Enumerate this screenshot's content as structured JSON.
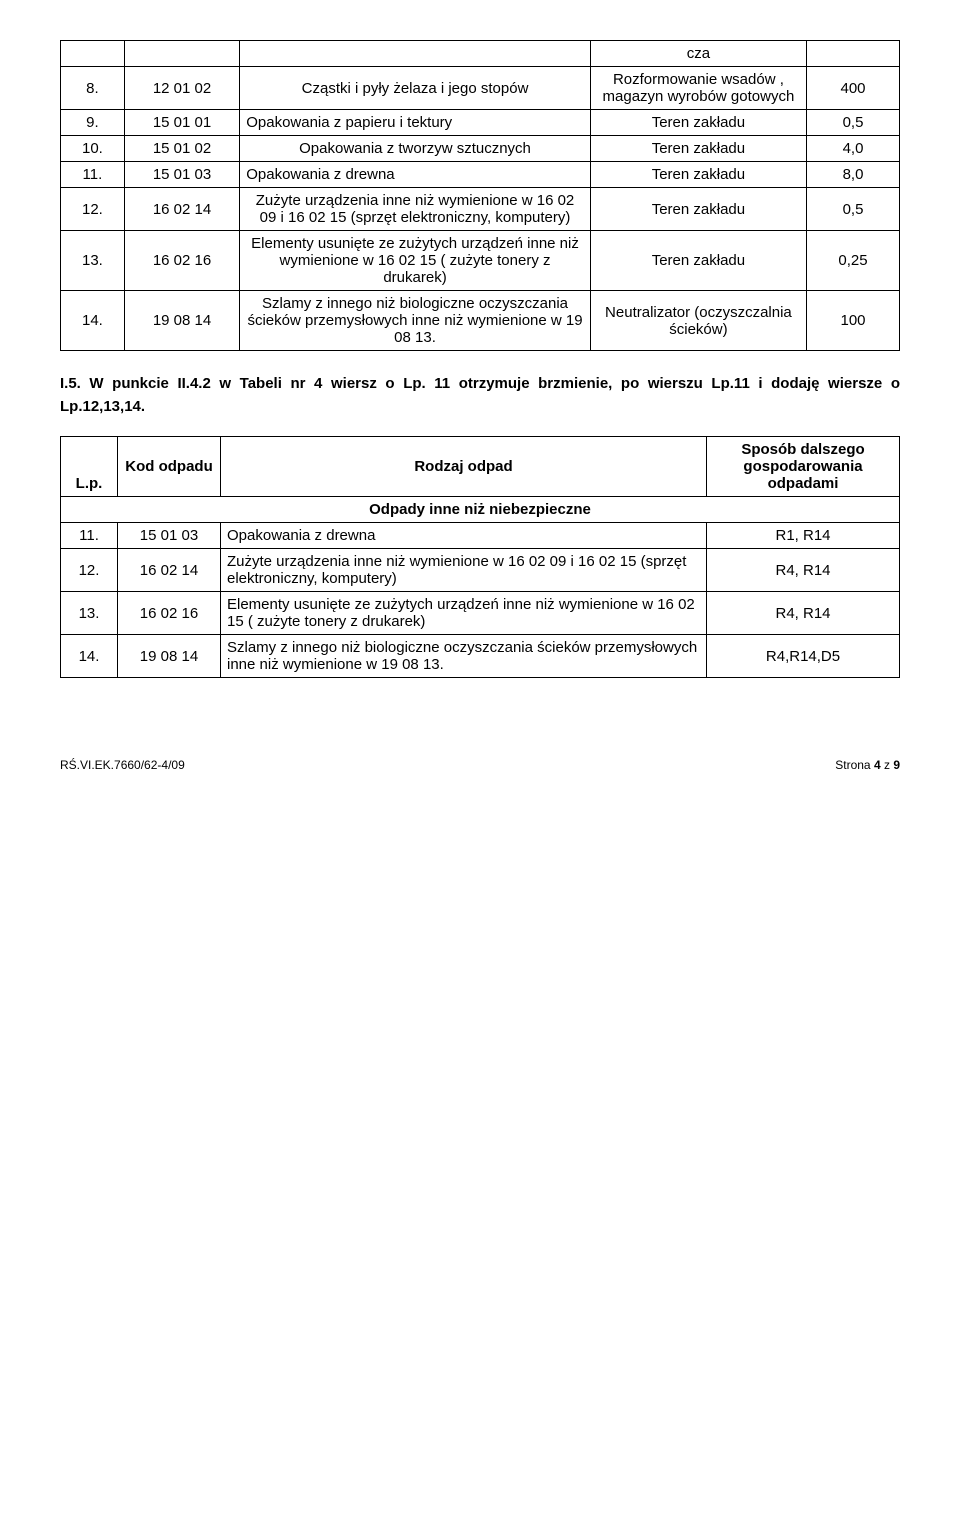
{
  "table1": {
    "rows": [
      {
        "n": "",
        "code": "",
        "desc": "",
        "loc": "cza",
        "val": ""
      },
      {
        "n": "8.",
        "code": "12 01 02",
        "desc": "Cząstki i pyły żelaza i jego stopów",
        "loc": "Rozformowanie wsadów , magazyn wyrobów gotowych",
        "val": "400"
      },
      {
        "n": "9.",
        "code": "15 01 01",
        "desc": "Opakowania z papieru i tektury",
        "loc": "Teren zakładu",
        "val": "0,5"
      },
      {
        "n": "10.",
        "code": "15 01 02",
        "desc": "Opakowania z tworzyw sztucznych",
        "loc": "Teren zakładu",
        "val": "4,0"
      },
      {
        "n": "11.",
        "code": "15 01 03",
        "desc": "Opakowania z drewna",
        "loc": "Teren zakładu",
        "val": "8,0"
      },
      {
        "n": "12.",
        "code": "16 02 14",
        "desc": "Zużyte urządzenia inne niż wymienione w 16 02 09 i 16 02 15 (sprzęt elektroniczny, komputery)",
        "loc": "Teren zakładu",
        "val": "0,5"
      },
      {
        "n": "13.",
        "code": "16 02 16",
        "desc": "Elementy usunięte ze zużytych urządzeń inne niż wymienione w 16 02 15 ( zużyte tonery z drukarek)",
        "loc": "Teren zakładu",
        "val": "0,25"
      },
      {
        "n": "14.",
        "code": "19 08 14",
        "desc": "Szlamy z innego niż biologiczne oczyszczania ścieków przemysłowych inne niż wymienione w 19 08 13.",
        "loc": "Neutralizator (oczyszczalnia ścieków)",
        "val": "100"
      }
    ]
  },
  "paragraph": {
    "prefix": "I.5.   W punkcie ",
    "b1": "II.4.2",
    "mid1": " w Tabeli nr 4 wiersz o ",
    "b2": "Lp. 11",
    "mid2": " otrzymuje brzmienie, po wierszu  Lp.11  i dodaję wiersze   o ",
    "b3": "Lp.12,13,14.",
    "suffix": ""
  },
  "table2": {
    "header": {
      "c1": "L.p.",
      "c2": "Kod odpadu",
      "c3": "Rodzaj odpad",
      "c4": "Sposób dalszego gospodarowania odpadami"
    },
    "section": "Odpady inne niż niebezpieczne",
    "rows": [
      {
        "n": "11.",
        "code": "15 01 03",
        "desc": "Opakowania z drewna",
        "method": "R1, R14"
      },
      {
        "n": "12.",
        "code": "16 02 14",
        "desc": "Zużyte urządzenia inne niż wymienione w 16 02 09 i 16 02 15 (sprzęt elektroniczny, komputery)",
        "method": "R4, R14"
      },
      {
        "n": "13.",
        "code": "16 02 16",
        "desc": "Elementy usunięte ze zużytych urządzeń inne niż wymienione w 16 02 15 ( zużyte tonery z drukarek)",
        "method": "R4, R14"
      },
      {
        "n": "14.",
        "code": "19 08 14",
        "desc": "Szlamy z innego niż biologiczne oczyszczania ścieków przemysłowych inne niż wymienione w 19 08 13.",
        "method": "R4,R14,D5"
      }
    ]
  },
  "footer": {
    "left": "RŚ.VI.EK.7660/62-4/09",
    "right": "Strona 4 z 9"
  }
}
